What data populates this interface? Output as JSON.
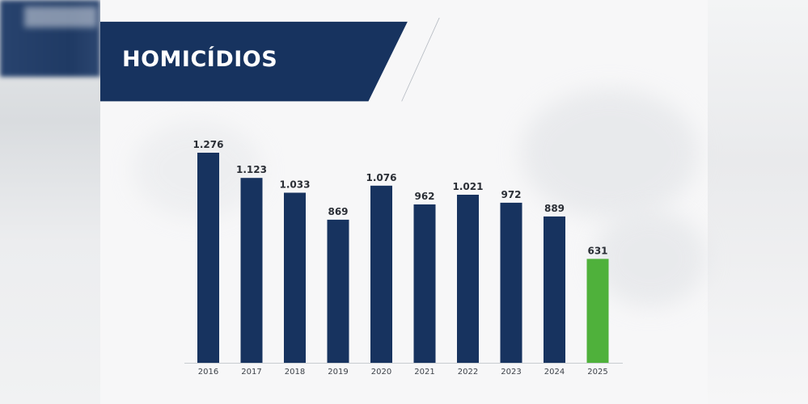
{
  "colors": {
    "bar": "#17335f",
    "highlight_bar": "#4fb13b",
    "banner": "#17335f",
    "banner_outline": "#b9bec5",
    "baseline": "#c8ccd1"
  },
  "chart_data": {
    "type": "bar",
    "title": "HOMICÍDIOS",
    "xlabel": "",
    "ylabel": "",
    "ylim": [
      0,
      1276
    ],
    "grid": false,
    "categories": [
      "2016",
      "2017",
      "2018",
      "2019",
      "2020",
      "2021",
      "2022",
      "2023",
      "2024",
      "2025"
    ],
    "values": [
      1276,
      1123,
      1033,
      869,
      1076,
      962,
      1021,
      972,
      889,
      631
    ],
    "value_labels": [
      "1.276",
      "1.123",
      "1.033",
      "869",
      "1.076",
      "962",
      "1.021",
      "972",
      "889",
      "631"
    ],
    "highlight_category": "2025"
  }
}
